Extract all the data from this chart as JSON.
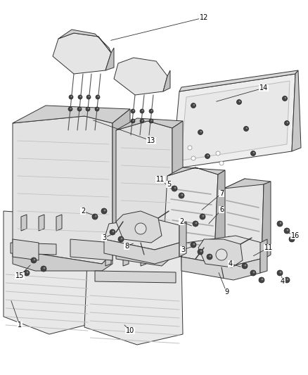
{
  "bg_color": "#ffffff",
  "line_color": "#333333",
  "lw": 0.7,
  "seat_face_color": "#e8e8e8",
  "seat_side_color": "#c8c8c8",
  "seat_top_color": "#d8d8d8",
  "panel_color": "#f0f0f0",
  "hatch_color": "#bbbbbb",
  "bolt_color": "#555555",
  "label_fontsize": 7.0
}
